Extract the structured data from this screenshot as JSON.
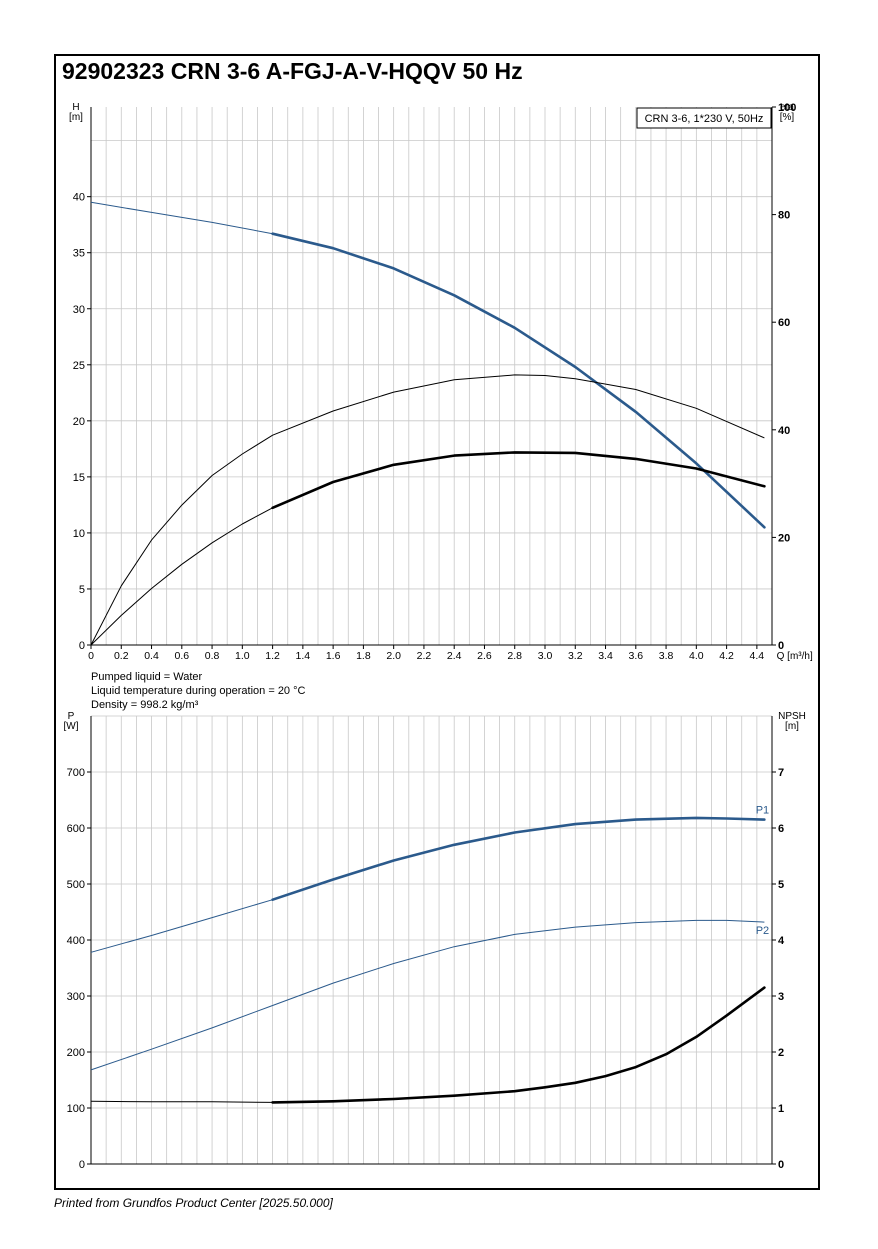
{
  "page": {
    "title": "92902323 CRN 3-6 A-FGJ-A-V-HQQV 50 Hz",
    "footer": "Printed from Grundfos Product Center [2025.50.000]"
  },
  "info": {
    "line1": "Pumped liquid = Water",
    "line2": "Liquid temperature during operation = 20 °C",
    "line3": "Density = 998.2 kg/m³"
  },
  "colors": {
    "blue": "#2b5a8c",
    "black": "#000000",
    "grid": "#c8c8c8"
  },
  "chart_data": [
    {
      "type": "line",
      "legend_box": "CRN 3-6, 1*230 V, 50Hz",
      "xlabel": "Q [m³/h]",
      "ylabel": "H\n[m]",
      "ylabel_right": "eta\n[%]",
      "xlim": [
        0,
        4.5
      ],
      "ylim": [
        0,
        48
      ],
      "y2lim": [
        0,
        100
      ],
      "x_ticks": [
        "0",
        "0.2",
        "0.4",
        "0.6",
        "0.8",
        "1.0",
        "1.2",
        "1.4",
        "1.6",
        "1.8",
        "2.0",
        "2.2",
        "2.4",
        "2.6",
        "2.8",
        "3.0",
        "3.2",
        "3.4",
        "3.6",
        "3.8",
        "4.0",
        "4.2",
        "4.4"
      ],
      "y_ticks": [
        "0",
        "5",
        "10",
        "15",
        "20",
        "25",
        "30",
        "35",
        "40"
      ],
      "y2_ticks": [
        "0",
        "20",
        "40",
        "60",
        "80",
        "100"
      ],
      "grid": true,
      "series": [
        {
          "axis": "left",
          "color": "blue",
          "x": [
            0,
            0.4,
            0.8,
            1.2,
            1.6,
            2.0,
            2.4,
            2.8,
            3.2,
            3.6,
            4.0,
            4.45
          ],
          "y": [
            39.5,
            38.6,
            37.7,
            36.7,
            35.4,
            33.6,
            31.2,
            28.3,
            24.8,
            20.8,
            16.2,
            10.5
          ],
          "bold_from": 1.2
        },
        {
          "axis": "right",
          "color": "black",
          "x": [
            0,
            0.2,
            0.4,
            0.6,
            0.8,
            1.0,
            1.2,
            1.6,
            2.0,
            2.4,
            2.8,
            3.0,
            3.2,
            3.6,
            4.0,
            4.45
          ],
          "y": [
            0,
            11,
            19.5,
            26,
            31.5,
            35.5,
            39,
            43.5,
            47,
            49.3,
            50.2,
            50.1,
            49.5,
            47.5,
            44,
            38.5
          ]
        },
        {
          "axis": "right",
          "color": "black",
          "x": [
            0,
            0.2,
            0.4,
            0.6,
            0.8,
            1.0,
            1.2,
            1.6,
            2.0,
            2.4,
            2.8,
            3.2,
            3.6,
            4.0,
            4.45
          ],
          "y": [
            0,
            5.5,
            10.5,
            15,
            19,
            22.5,
            25.5,
            30.3,
            33.5,
            35.2,
            35.8,
            35.7,
            34.6,
            32.8,
            29.5
          ],
          "bold_from": 1.2
        }
      ]
    },
    {
      "type": "line",
      "ylabel": "P\n[W]",
      "ylabel_right": "NPSH\n[m]",
      "xlim": [
        0,
        4.5
      ],
      "ylim": [
        0,
        800
      ],
      "y2lim": [
        0,
        8
      ],
      "y_ticks": [
        "0",
        "100",
        "200",
        "300",
        "400",
        "500",
        "600",
        "700"
      ],
      "y2_ticks": [
        "0",
        "1",
        "2",
        "3",
        "4",
        "5",
        "6",
        "7"
      ],
      "grid": true,
      "series": [
        {
          "name": "P1",
          "axis": "left",
          "color": "blue",
          "x": [
            0,
            0.4,
            0.8,
            1.2,
            1.6,
            2.0,
            2.4,
            2.8,
            3.2,
            3.6,
            4.0,
            4.2,
            4.45
          ],
          "y": [
            378,
            408,
            440,
            472,
            508,
            542,
            570,
            592,
            607,
            615,
            618,
            617,
            615
          ],
          "bold_from": 1.2
        },
        {
          "name": "P2",
          "axis": "left",
          "color": "blue",
          "x": [
            0,
            0.4,
            0.8,
            1.2,
            1.6,
            2.0,
            2.4,
            2.8,
            3.2,
            3.6,
            4.0,
            4.2,
            4.45
          ],
          "y": [
            168,
            205,
            243,
            283,
            323,
            358,
            388,
            410,
            423,
            431,
            435,
            435,
            432
          ]
        },
        {
          "axis": "right",
          "color": "black",
          "x": [
            0,
            0.4,
            0.8,
            1.2,
            1.6,
            2.0,
            2.4,
            2.8,
            3.0,
            3.2,
            3.4,
            3.6,
            3.8,
            4.0,
            4.2,
            4.45
          ],
          "y": [
            1.12,
            1.11,
            1.11,
            1.1,
            1.12,
            1.16,
            1.22,
            1.3,
            1.37,
            1.45,
            1.57,
            1.73,
            1.96,
            2.27,
            2.65,
            3.15
          ],
          "bold_from": 1.2
        }
      ]
    }
  ]
}
